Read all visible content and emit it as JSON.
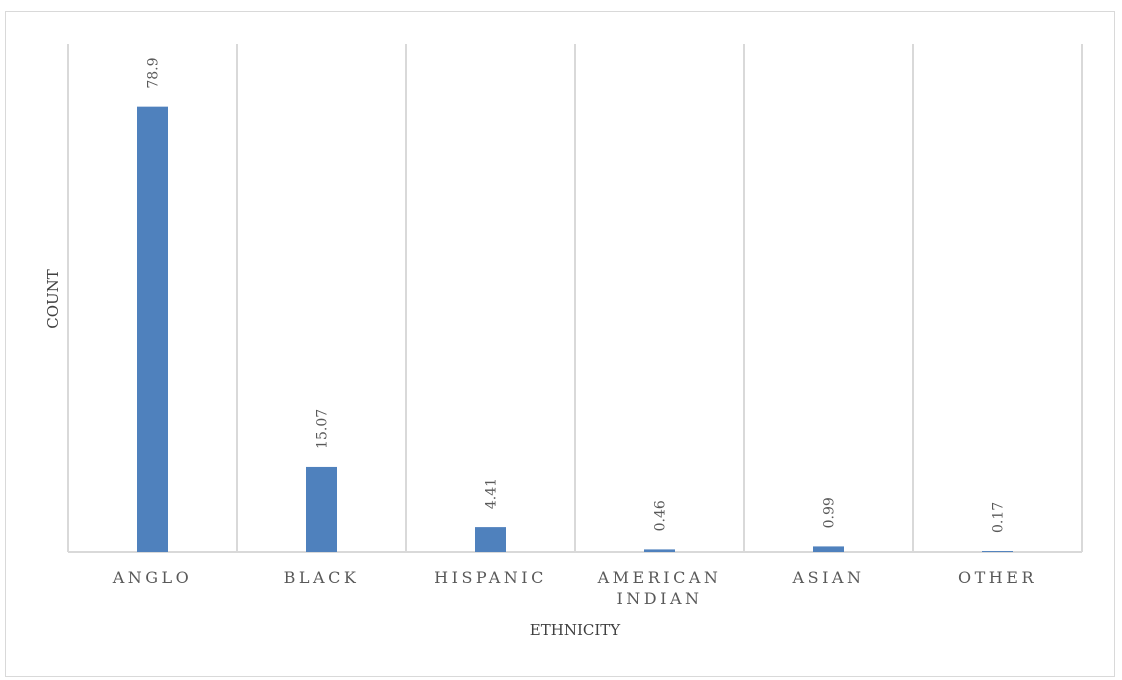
{
  "chart_data": {
    "type": "bar",
    "title": "",
    "xlabel": "ETHNICITY",
    "ylabel": "COUNT",
    "categories": [
      [
        "ANGLO"
      ],
      [
        "BLACK"
      ],
      [
        "HISPANIC"
      ],
      [
        "AMERICAN",
        "INDIAN"
      ],
      [
        "ASIAN"
      ],
      [
        "OTHER"
      ]
    ],
    "values": [
      78.9,
      15.07,
      4.41,
      0.46,
      0.99,
      0.17
    ],
    "value_labels": [
      "78.9",
      "15.07",
      "4.41",
      "0.46",
      "0.99",
      "0.17"
    ],
    "ylim": [
      0,
      90
    ],
    "grid": "vertical",
    "legend": "none",
    "bar_color": "#4f81bd",
    "grid_color": "#d9d9d9"
  }
}
